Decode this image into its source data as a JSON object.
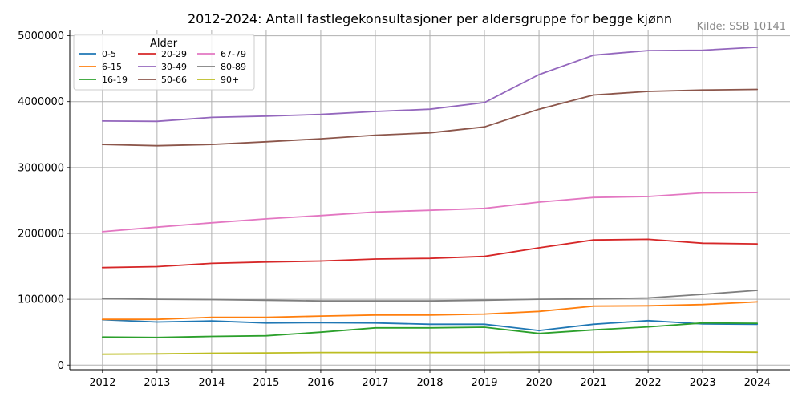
{
  "chart_data": {
    "type": "line",
    "title": "2012-2024: Antall fastlegekonsultasjoner per aldersgruppe for begge kjønn",
    "source": "Kilde: SSB 10141",
    "xlabel": "",
    "ylabel": "",
    "x": [
      2012,
      2013,
      2014,
      2015,
      2016,
      2017,
      2018,
      2019,
      2020,
      2021,
      2022,
      2023,
      2024
    ],
    "xlim": [
      2011.4,
      2024.6
    ],
    "ylim": [
      -70000,
      5080000
    ],
    "yticks": [
      0,
      1000000,
      2000000,
      3000000,
      4000000,
      5000000
    ],
    "ytick_labels": [
      "0",
      "1000000",
      "2000000",
      "3000000",
      "4000000",
      "5000000"
    ],
    "grid": true,
    "legend": {
      "title": "Alder",
      "placement": "top-left",
      "columns": 3
    },
    "series": [
      {
        "name": "0-5",
        "color": "#1f77b4",
        "values": [
          690000,
          655000,
          670000,
          640000,
          645000,
          640000,
          620000,
          620000,
          525000,
          620000,
          675000,
          625000,
          620000
        ]
      },
      {
        "name": "6-15",
        "color": "#ff7f0e",
        "values": [
          695000,
          695000,
          725000,
          725000,
          745000,
          760000,
          760000,
          775000,
          815000,
          895000,
          900000,
          920000,
          960000
        ]
      },
      {
        "name": "16-19",
        "color": "#2ca02c",
        "values": [
          425000,
          420000,
          435000,
          445000,
          500000,
          565000,
          565000,
          575000,
          480000,
          535000,
          580000,
          640000,
          635000
        ]
      },
      {
        "name": "20-29",
        "color": "#d62728",
        "values": [
          1480000,
          1495000,
          1545000,
          1565000,
          1580000,
          1610000,
          1620000,
          1650000,
          1780000,
          1900000,
          1910000,
          1850000,
          1840000
        ]
      },
      {
        "name": "30-49",
        "color": "#9467bd",
        "values": [
          3705000,
          3700000,
          3760000,
          3780000,
          3805000,
          3850000,
          3885000,
          3985000,
          4410000,
          4705000,
          4775000,
          4780000,
          4825000
        ]
      },
      {
        "name": "50-66",
        "color": "#8c564b",
        "values": [
          3350000,
          3330000,
          3350000,
          3390000,
          3435000,
          3490000,
          3525000,
          3615000,
          3885000,
          4100000,
          4155000,
          4175000,
          4185000
        ]
      },
      {
        "name": "67-79",
        "color": "#e377c2",
        "values": [
          2025000,
          2095000,
          2160000,
          2220000,
          2270000,
          2325000,
          2350000,
          2380000,
          2475000,
          2545000,
          2560000,
          2615000,
          2620000
        ]
      },
      {
        "name": "80-89",
        "color": "#7f7f7f",
        "values": [
          1010000,
          1000000,
          995000,
          985000,
          975000,
          975000,
          975000,
          985000,
          1000000,
          1005000,
          1020000,
          1075000,
          1135000
        ]
      },
      {
        "name": "90+",
        "color": "#bcbd22",
        "values": [
          165000,
          170000,
          180000,
          185000,
          190000,
          190000,
          190000,
          190000,
          195000,
          195000,
          200000,
          200000,
          195000
        ]
      }
    ]
  }
}
